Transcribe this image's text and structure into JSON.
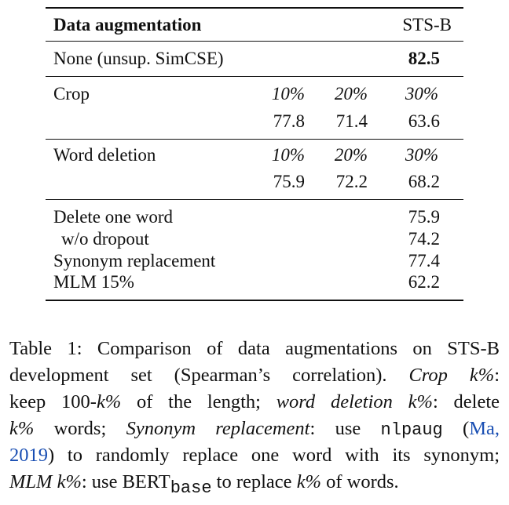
{
  "table": {
    "header": [
      "Data augmentation",
      "STS-B"
    ],
    "baseline": {
      "label": "None (unsup. SimCSE)",
      "score": 82.5
    },
    "crop": {
      "label": "Crop",
      "ratios": [
        "10%",
        "20%",
        "30%"
      ],
      "scores": [
        77.8,
        71.4,
        63.6
      ]
    },
    "word_deletion": {
      "label": "Word deletion",
      "ratios": [
        "10%",
        "20%",
        "30%"
      ],
      "scores": [
        75.9,
        72.2,
        68.2
      ]
    },
    "others": [
      [
        "Delete one word",
        75.9
      ],
      [
        "w/o dropout",
        74.2
      ],
      [
        "Synonym replacement",
        77.4
      ],
      [
        "MLM 15%",
        62.2
      ]
    ]
  },
  "caption": {
    "lines": [
      [
        "Table 1: Comparison of data augmentations on STS-B"
      ],
      [
        "development set (Spearman’s correlation). ",
        "Crop k%",
        ":"
      ],
      [
        "keep 100-",
        "k%",
        " of the length; ",
        "word deletion k%",
        ": delete"
      ],
      [
        "k%",
        " words; ",
        "Synonym replacement",
        ": use ",
        "nlpaug",
        " (",
        "Ma,"
      ],
      [
        "2019",
        ") to randomly replace one word with its synonym;"
      ],
      [
        "MLM k%",
        ": use BERT",
        "base",
        " to replace ",
        "k%",
        " of words."
      ]
    ]
  }
}
